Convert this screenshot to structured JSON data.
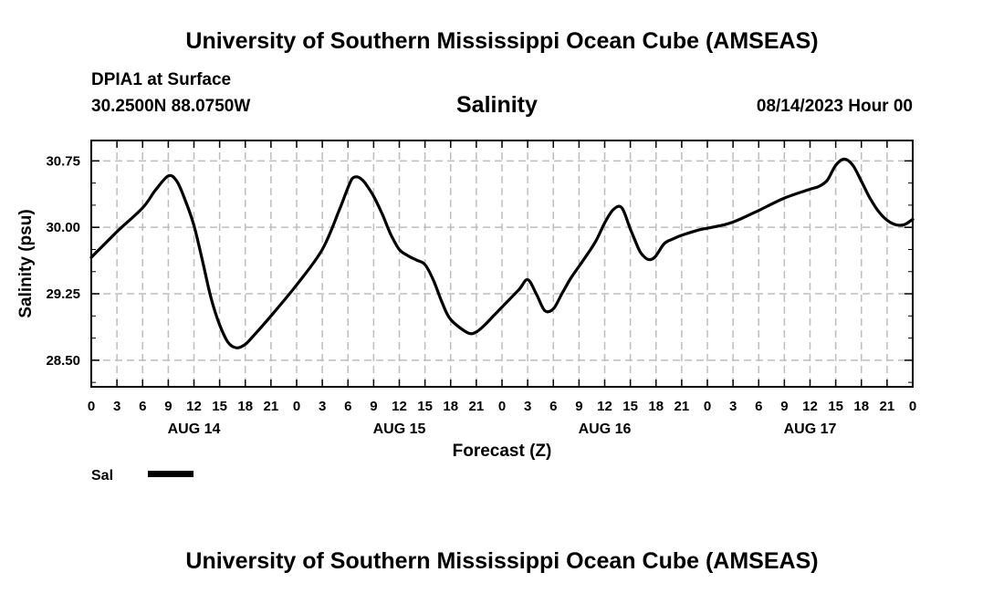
{
  "header": {
    "title_top": "University of Southern Mississippi Ocean Cube (AMSEAS)",
    "station": "DPIA1 at Surface",
    "location": "30.2500N  88.0750W",
    "variable": "Salinity",
    "datetime": "08/14/2023 Hour 00",
    "title_bottom": "University of Southern Mississippi Ocean Cube (AMSEAS)"
  },
  "legend": {
    "label": "Sal",
    "color": "#000000"
  },
  "colors": {
    "grid": "#bdbdbd",
    "line": "#000000"
  },
  "chart_data": {
    "type": "line",
    "title": "Salinity",
    "xlabel": "Forecast (Z)",
    "ylabel": "Salinity (psu)",
    "xlim": [
      0,
      96
    ],
    "ylim": [
      28.2,
      30.98
    ],
    "yticks": [
      28.5,
      29.25,
      30.0,
      30.75
    ],
    "ytick_labels": [
      "28.50",
      "29.25",
      "30.00",
      "30.75"
    ],
    "xtick_hours": [
      0,
      3,
      6,
      9,
      12,
      15,
      18,
      21,
      24,
      27,
      30,
      33,
      36,
      39,
      42,
      45,
      48,
      51,
      54,
      57,
      60,
      63,
      66,
      69,
      72,
      75,
      78,
      81,
      84,
      87,
      90,
      93,
      96
    ],
    "xtick_labels": [
      "0",
      "3",
      "6",
      "9",
      "12",
      "15",
      "18",
      "21",
      "0",
      "3",
      "6",
      "9",
      "12",
      "15",
      "18",
      "21",
      "0",
      "3",
      "6",
      "9",
      "12",
      "15",
      "18",
      "21",
      "0",
      "3",
      "6",
      "9",
      "12",
      "15",
      "18",
      "21",
      "0"
    ],
    "day_labels": [
      {
        "hour": 12,
        "label": "AUG 14"
      },
      {
        "hour": 36,
        "label": "AUG 15"
      },
      {
        "hour": 60,
        "label": "AUG 16"
      },
      {
        "hour": 84,
        "label": "AUG 17"
      }
    ],
    "grid": true,
    "series": [
      {
        "name": "Sal",
        "hours": [
          0,
          3,
          6,
          7.5,
          9,
          10,
          11,
          12,
          13,
          14,
          15,
          16,
          17,
          18,
          19,
          21,
          24,
          27,
          29,
          30,
          30.5,
          31,
          31.5,
          32,
          33,
          34,
          35,
          36,
          37,
          38,
          39,
          40,
          41,
          42,
          44,
          45,
          46,
          47,
          48,
          50,
          51,
          52,
          53,
          54,
          55,
          56,
          57,
          58,
          59,
          60,
          61,
          62,
          63,
          64,
          64.5,
          65,
          65.5,
          66,
          67,
          68,
          69,
          71,
          72,
          74,
          75,
          76,
          78,
          81,
          84,
          85,
          86,
          87,
          88,
          89,
          90,
          91,
          92,
          93,
          94,
          95,
          96
        ],
        "values": [
          29.66,
          29.95,
          30.22,
          30.42,
          30.58,
          30.52,
          30.3,
          30.02,
          29.62,
          29.2,
          28.9,
          28.7,
          28.64,
          28.68,
          28.78,
          29.0,
          29.35,
          29.75,
          30.2,
          30.45,
          30.55,
          30.57,
          30.55,
          30.5,
          30.35,
          30.15,
          29.92,
          29.75,
          29.68,
          29.63,
          29.58,
          29.4,
          29.15,
          28.96,
          28.81,
          28.82,
          28.9,
          29.0,
          29.1,
          29.3,
          29.41,
          29.25,
          29.06,
          29.08,
          29.25,
          29.42,
          29.56,
          29.7,
          29.85,
          30.05,
          30.2,
          30.22,
          29.98,
          29.75,
          29.68,
          29.64,
          29.64,
          29.68,
          29.82,
          29.87,
          29.91,
          29.97,
          29.99,
          30.03,
          30.06,
          30.1,
          30.19,
          30.33,
          30.43,
          30.46,
          30.53,
          30.7,
          30.77,
          30.7,
          30.52,
          30.33,
          30.18,
          30.08,
          30.03,
          30.03,
          30.09
        ]
      }
    ]
  }
}
